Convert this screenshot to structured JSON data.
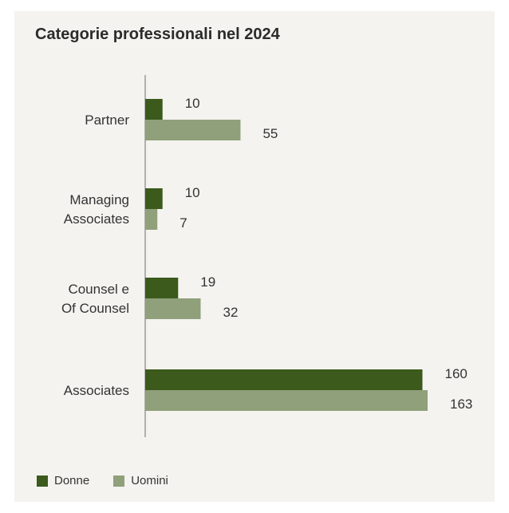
{
  "chart_data": {
    "type": "bar",
    "orientation": "horizontal",
    "title": "Categorie professionali nel 2024",
    "categories": [
      [
        "Partner"
      ],
      [
        "Managing",
        "Associates"
      ],
      [
        "Counsel e",
        "Of Counsel"
      ],
      [
        "Associates"
      ]
    ],
    "series": [
      {
        "name": "Donne",
        "color": "#3b5a1c",
        "values": [
          10,
          10,
          19,
          160
        ]
      },
      {
        "name": "Uomini",
        "color": "#8fa07a",
        "values": [
          55,
          7,
          32,
          163
        ]
      }
    ],
    "xlim": [
      0,
      163
    ],
    "grid": false,
    "legend": "bottom-left"
  }
}
